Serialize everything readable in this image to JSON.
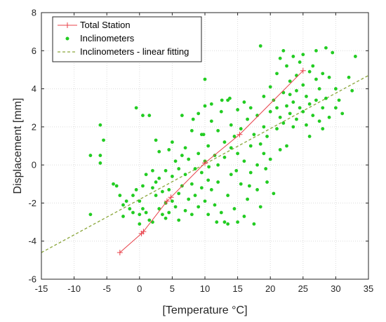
{
  "chart_data": {
    "type": "scatter",
    "title": "",
    "xlabel": "[Temperature °C]",
    "ylabel": "Displacement [mm]",
    "xlim": [
      -15,
      35
    ],
    "ylim": [
      -6,
      8
    ],
    "xticks": [
      -15,
      -10,
      -5,
      0,
      5,
      10,
      15,
      20,
      25,
      30,
      35
    ],
    "yticks": [
      -6,
      -4,
      -2,
      0,
      2,
      4,
      6,
      8
    ],
    "grid": true,
    "legend": "top-left",
    "colors": {
      "total_station": "#e8414a",
      "inclinometers": "#22cc22",
      "fit": "#8aa63a"
    },
    "series": [
      {
        "name": "Total Station",
        "kind": "line-markers",
        "x": [
          -3,
          0.3,
          0.6,
          4.2,
          4.8,
          10,
          15.3,
          25
        ],
        "y": [
          -4.6,
          -3.6,
          -3.5,
          -1.9,
          -1.7,
          0.1,
          1.6,
          4.95
        ]
      },
      {
        "name": "Inclinometers",
        "kind": "scatter",
        "points": [
          [
            -7.5,
            -2.6
          ],
          [
            -7.5,
            0.5
          ],
          [
            -6,
            2.1
          ],
          [
            -6,
            0.5
          ],
          [
            -6,
            0.1
          ],
          [
            -5.5,
            1.3
          ],
          [
            -4,
            -1.0
          ],
          [
            -3.5,
            -1.1
          ],
          [
            -3,
            -1.6
          ],
          [
            -2.5,
            -2.1
          ],
          [
            -2.5,
            -2.7
          ],
          [
            -2,
            -1.9
          ],
          [
            -1.5,
            -2.3
          ],
          [
            -1,
            -2.5
          ],
          [
            -1,
            -1.6
          ],
          [
            -0.5,
            3.0
          ],
          [
            -0.5,
            -1.3
          ],
          [
            0,
            -1.9
          ],
          [
            0,
            -2.6
          ],
          [
            0,
            -3.1
          ],
          [
            0.5,
            -2.3
          ],
          [
            0.5,
            -1.1
          ],
          [
            0.5,
            2.6
          ],
          [
            1,
            -0.5
          ],
          [
            1,
            -2.5
          ],
          [
            1.5,
            -2.9
          ],
          [
            1.5,
            2.6
          ],
          [
            2,
            -1.2
          ],
          [
            2,
            -0.3
          ],
          [
            2,
            -3.0
          ],
          [
            2.5,
            -1.6
          ],
          [
            2.5,
            1.3
          ],
          [
            2.5,
            -0.9
          ],
          [
            3,
            0.7
          ],
          [
            3,
            -2.3
          ],
          [
            3,
            -0.7
          ],
          [
            3.5,
            -1.4
          ],
          [
            3.5,
            -2.6
          ],
          [
            4,
            -0.3
          ],
          [
            4,
            -2.0
          ],
          [
            4,
            -2.8
          ],
          [
            4.5,
            -1.3
          ],
          [
            4.5,
            0.8
          ],
          [
            4.5,
            -2.5
          ],
          [
            5,
            -0.6
          ],
          [
            5,
            -1.9
          ],
          [
            5,
            1.2
          ],
          [
            5.5,
            -2.2
          ],
          [
            5.5,
            0.2
          ],
          [
            6,
            -1.5
          ],
          [
            6,
            -0.2
          ],
          [
            6,
            -2.9
          ],
          [
            6.5,
            0.5
          ],
          [
            6.5,
            -1.1
          ],
          [
            6.5,
            2.6
          ],
          [
            7,
            -2.4
          ],
          [
            7,
            -0.5
          ],
          [
            7,
            0.9
          ],
          [
            7.5,
            -1.8
          ],
          [
            7.5,
            0.3
          ],
          [
            8,
            -1.0
          ],
          [
            8,
            1.8
          ],
          [
            8,
            -2.6
          ],
          [
            8.5,
            -0.2
          ],
          [
            8.5,
            -1.6
          ],
          [
            9,
            0.6
          ],
          [
            9,
            -2.2
          ],
          [
            9,
            2.7
          ],
          [
            9.5,
            -1.2
          ],
          [
            9.5,
            1.6
          ],
          [
            9.5,
            -0.4
          ],
          [
            10,
            3.1
          ],
          [
            10,
            4.5
          ],
          [
            10,
            -1.9
          ],
          [
            10,
            0.2
          ],
          [
            10.5,
            -0.8
          ],
          [
            10.5,
            1.0
          ],
          [
            10.5,
            -2.6
          ],
          [
            11,
            2.3
          ],
          [
            11,
            -1.3
          ],
          [
            11,
            3.2
          ],
          [
            11.5,
            0.5
          ],
          [
            11.5,
            -2.1
          ],
          [
            12,
            0.0
          ],
          [
            12,
            1.8
          ],
          [
            12,
            -0.9
          ],
          [
            12.5,
            2.8
          ],
          [
            12.5,
            -2.5
          ],
          [
            13,
            1.2
          ],
          [
            13,
            -3.0
          ],
          [
            13,
            0.4
          ],
          [
            13.5,
            3.4
          ],
          [
            13.5,
            -1.6
          ],
          [
            13.5,
            -3.1
          ],
          [
            14,
            2.1
          ],
          [
            14,
            -0.5
          ],
          [
            14,
            0.9
          ],
          [
            14.5,
            1.5
          ],
          [
            14.5,
            -2.3
          ],
          [
            15,
            -3.0
          ],
          [
            15,
            0.6
          ],
          [
            15,
            2.9
          ],
          [
            15.5,
            -1.0
          ],
          [
            15.5,
            1.9
          ],
          [
            16,
            3.3
          ],
          [
            16,
            -2.7
          ],
          [
            16,
            0.2
          ],
          [
            16.5,
            2.4
          ],
          [
            16.5,
            -1.8
          ],
          [
            17,
            1.0
          ],
          [
            17,
            -0.4
          ],
          [
            17,
            3.0
          ],
          [
            17.5,
            -3.1
          ],
          [
            17.5,
            1.6
          ],
          [
            18,
            2.6
          ],
          [
            18,
            -1.3
          ],
          [
            18,
            0.0
          ],
          [
            18.5,
            6.25
          ],
          [
            18.5,
            1.1
          ],
          [
            18.5,
            -2.2
          ],
          [
            19,
            3.6
          ],
          [
            19,
            2.0
          ],
          [
            19,
            0.6
          ],
          [
            19.5,
            1.5
          ],
          [
            19.5,
            -0.9
          ],
          [
            20,
            4.1
          ],
          [
            20,
            2.8
          ],
          [
            20,
            0.3
          ],
          [
            20.5,
            3.4
          ],
          [
            20.5,
            -1.5
          ],
          [
            21,
            4.8
          ],
          [
            21,
            1.9
          ],
          [
            21,
            3.0
          ],
          [
            21.5,
            5.6
          ],
          [
            21.5,
            2.5
          ],
          [
            21.5,
            0.8
          ],
          [
            22,
            6.0
          ],
          [
            22,
            3.8
          ],
          [
            22,
            2.2
          ],
          [
            22.5,
            5.2
          ],
          [
            22.5,
            3.1
          ],
          [
            22.5,
            1.0
          ],
          [
            23,
            4.4
          ],
          [
            23,
            2.7
          ],
          [
            23,
            3.7
          ],
          [
            23.5,
            5.7
          ],
          [
            23.5,
            2.0
          ],
          [
            23.5,
            3.3
          ],
          [
            24,
            4.7
          ],
          [
            24,
            3.9
          ],
          [
            24,
            2.4
          ],
          [
            24.5,
            5.4
          ],
          [
            24.5,
            3.0
          ],
          [
            25,
            4.2
          ],
          [
            25,
            2.8
          ],
          [
            25,
            5.8
          ],
          [
            25.5,
            3.6
          ],
          [
            25.5,
            2.1
          ],
          [
            26,
            4.9
          ],
          [
            26,
            3.2
          ],
          [
            26,
            1.5
          ],
          [
            26.5,
            5.2
          ],
          [
            26.5,
            2.6
          ],
          [
            27,
            4.5
          ],
          [
            27,
            3.4
          ],
          [
            27,
            6.0
          ],
          [
            27.5,
            2.3
          ],
          [
            27.5,
            4.0
          ],
          [
            28,
            1.9
          ],
          [
            28,
            3.0
          ],
          [
            28,
            4.8
          ],
          [
            28.5,
            6.15
          ],
          [
            28.5,
            3.5
          ],
          [
            29,
            4.6
          ],
          [
            29,
            2.5
          ],
          [
            29.5,
            5.9
          ],
          [
            30,
            4.0
          ],
          [
            30,
            3.0
          ],
          [
            30.5,
            3.4
          ],
          [
            31,
            2.7
          ],
          [
            32,
            4.6
          ],
          [
            32.5,
            3.9
          ],
          [
            33,
            5.7
          ],
          [
            12.6,
            3.4
          ],
          [
            13.8,
            3.5
          ],
          [
            9.8,
            1.6
          ],
          [
            11.8,
            -3.0
          ],
          [
            10.6,
            -0.1
          ],
          [
            14.8,
            -0.3
          ],
          [
            16.8,
            -1.1
          ],
          [
            19.3,
            -0.2
          ],
          [
            8.2,
            2.4
          ]
        ]
      },
      {
        "name": "Inclinometers - linear fitting",
        "kind": "dashed-line",
        "x": [
          -15,
          35
        ],
        "y": [
          -4.6,
          4.7
        ]
      }
    ]
  }
}
